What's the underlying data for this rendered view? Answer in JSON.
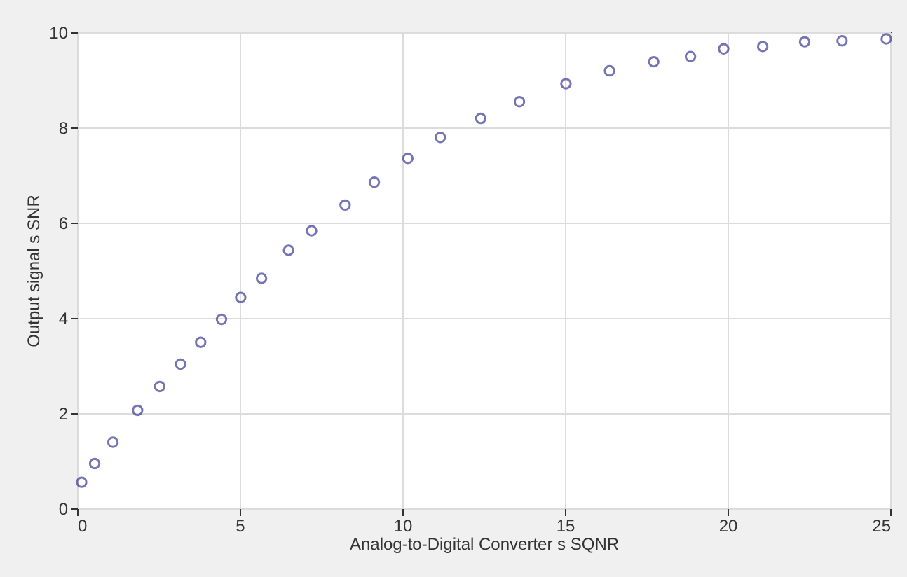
{
  "chart_data": {
    "type": "scatter",
    "xlabel": "Analog-to-Digital Converter s SQNR",
    "ylabel": "Output signal  s SNR",
    "x": [
      0.14,
      0.54,
      1.1,
      1.86,
      2.54,
      3.18,
      3.8,
      4.44,
      5.03,
      5.67,
      6.5,
      7.21,
      8.24,
      9.14,
      10.17,
      11.17,
      12.41,
      13.6,
      15.03,
      16.37,
      17.73,
      18.86,
      19.88,
      21.08,
      22.37,
      23.52,
      24.88
    ],
    "series": [
      {
        "color": "#3c3c96",
        "values": [
          0.55,
          0.94,
          1.39,
          2.06,
          2.56,
          3.03,
          3.49,
          3.97,
          4.43,
          4.83,
          5.42,
          5.83,
          6.37,
          6.85,
          7.35,
          7.79,
          8.19,
          8.54,
          8.92,
          9.19,
          9.38,
          9.49,
          9.65,
          9.7,
          9.8,
          9.82,
          9.86
        ]
      }
    ],
    "xlim": [
      0,
      25
    ],
    "xticks": [
      0,
      5,
      10,
      15,
      20,
      25
    ],
    "ylim": [
      0,
      10
    ],
    "yticks": [
      0,
      2,
      4,
      6,
      8,
      10
    ],
    "grid": true,
    "marker": "circle"
  }
}
